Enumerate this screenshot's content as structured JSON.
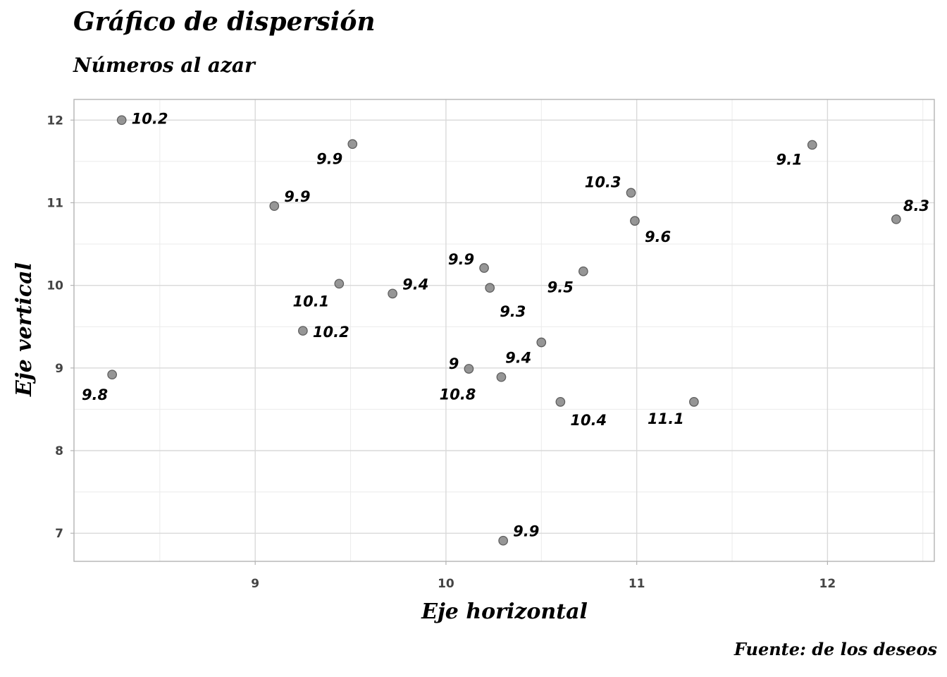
{
  "chart_data": {
    "type": "scatter",
    "title": "Gráfico de dispersión",
    "subtitle": "Números al azar",
    "caption": "Fuente: de los deseos",
    "xlabel": "Eje horizontal",
    "ylabel": "Eje vertical",
    "xlim": [
      8.05,
      12.56
    ],
    "ylim": [
      6.66,
      12.25
    ],
    "xticks": [
      9,
      10,
      11,
      12
    ],
    "yticks": [
      7,
      8,
      9,
      10,
      11,
      12
    ],
    "grid": true,
    "point_color": "#7f7f7f",
    "points": [
      {
        "x": 8.3,
        "y": 12.0,
        "label": "10.2"
      },
      {
        "x": 9.51,
        "y": 11.71,
        "label": "9.9"
      },
      {
        "x": 9.1,
        "y": 10.96,
        "label": "9.9"
      },
      {
        "x": 10.97,
        "y": 11.12,
        "label": "10.3"
      },
      {
        "x": 10.99,
        "y": 10.78,
        "label": "9.6"
      },
      {
        "x": 11.92,
        "y": 11.7,
        "label": "9.1"
      },
      {
        "x": 12.36,
        "y": 10.8,
        "label": "8.3"
      },
      {
        "x": 10.2,
        "y": 10.21,
        "label": "9.9"
      },
      {
        "x": 10.23,
        "y": 9.97,
        "label": "9.3"
      },
      {
        "x": 10.72,
        "y": 10.17,
        "label": "9.5"
      },
      {
        "x": 9.44,
        "y": 10.02,
        "label": "10.1"
      },
      {
        "x": 9.72,
        "y": 9.9,
        "label": "9.4"
      },
      {
        "x": 9.25,
        "y": 9.45,
        "label": "10.2"
      },
      {
        "x": 8.25,
        "y": 8.92,
        "label": "9.8"
      },
      {
        "x": 10.12,
        "y": 8.99,
        "label": "9"
      },
      {
        "x": 10.29,
        "y": 8.89,
        "label": "10.8"
      },
      {
        "x": 10.5,
        "y": 9.31,
        "label": "9.4"
      },
      {
        "x": 10.6,
        "y": 8.59,
        "label": "10.4"
      },
      {
        "x": 11.3,
        "y": 8.59,
        "label": "11.1"
      },
      {
        "x": 10.3,
        "y": 6.91,
        "label": "9.9"
      }
    ]
  }
}
